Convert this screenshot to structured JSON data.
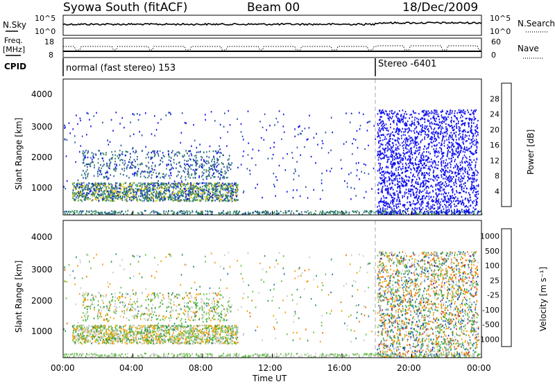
{
  "header": {
    "site_title": "Syowa South (fitACF)",
    "beam_title": "Beam 00",
    "date": "18/Dec/2009"
  },
  "noise_panel": {
    "left_label": "N.Sky",
    "right_label": "N.Search",
    "left_ticks": [
      "10^5",
      "10^0"
    ],
    "right_ticks": [
      "10^5",
      "10^0"
    ]
  },
  "freq_panel": {
    "left_label_top": "Freq.",
    "left_label_bottom": "[MHz]",
    "right_label": "Nave",
    "left_ticks": [
      "18",
      "8"
    ],
    "right_ticks": [
      "60",
      "0"
    ]
  },
  "cpid_panel": {
    "label": "CPID",
    "mode_1": "normal (fast stereo) 153",
    "mode_2": "Stereo -6401"
  },
  "power_panel": {
    "ylabel": "Slant Range [km]",
    "yticks": [
      "1000",
      "2000",
      "3000",
      "4000"
    ],
    "colorbar_label": "Power [dB]",
    "colorbar_ticks": [
      "4",
      "8",
      "12",
      "16",
      "20",
      "24",
      "28"
    ],
    "colorbar_colors": [
      "#1010f0",
      "#2050a0",
      "#2e7d60",
      "#3a9a60",
      "#e0c000",
      "#f08000",
      "#e02000"
    ]
  },
  "velocity_panel": {
    "ylabel": "Slant Range [km]",
    "yticks": [
      "1000",
      "2000",
      "3000",
      "4000"
    ],
    "colorbar_label": "Velocity [m s⁻¹]",
    "colorbar_ticks": [
      "1000",
      "500",
      "100",
      "25",
      "-25",
      "-100",
      "-500",
      "-1000"
    ],
    "colorbar_colors": [
      "#1030c0",
      "#2c6fb0",
      "#2e9050",
      "#60c040",
      "#c8c8c8",
      "#f0a000",
      "#f07000",
      "#e02020"
    ]
  },
  "x_axis": {
    "ticks": [
      "00:00",
      "04:00",
      "08:00",
      "12:00",
      "16:00",
      "20:00",
      "00:00"
    ],
    "label": "Time UT"
  },
  "chart_data": [
    {
      "type": "heatmap",
      "panel": "power",
      "xlabel": "Time UT",
      "ylabel": "Slant Range [km]",
      "xlim_hours": [
        0,
        24
      ],
      "ylim_km": [
        180,
        4600
      ],
      "colorbar": "Power [dB]",
      "colorbar_range": [
        2,
        30
      ],
      "mode_change_hour": 18.0,
      "notes_regions": [
        {
          "t_start": 0.5,
          "t_end": 10.0,
          "range_start": 600,
          "range_end": 2400,
          "power_db": [
            4,
            20
          ]
        },
        {
          "t_start": 18.0,
          "t_end": 23.9,
          "range_start": 200,
          "range_end": 3600,
          "power_db": [
            4,
            8
          ]
        }
      ]
    },
    {
      "type": "heatmap",
      "panel": "velocity",
      "xlabel": "Time UT",
      "ylabel": "Slant Range [km]",
      "xlim_hours": [
        0,
        24
      ],
      "ylim_km": [
        180,
        4600
      ],
      "colorbar": "Velocity [m s-1]",
      "colorbar_levels": [
        1000,
        500,
        100,
        25,
        -25,
        -100,
        -500,
        -1000
      ],
      "mode_change_hour": 18.0
    }
  ]
}
